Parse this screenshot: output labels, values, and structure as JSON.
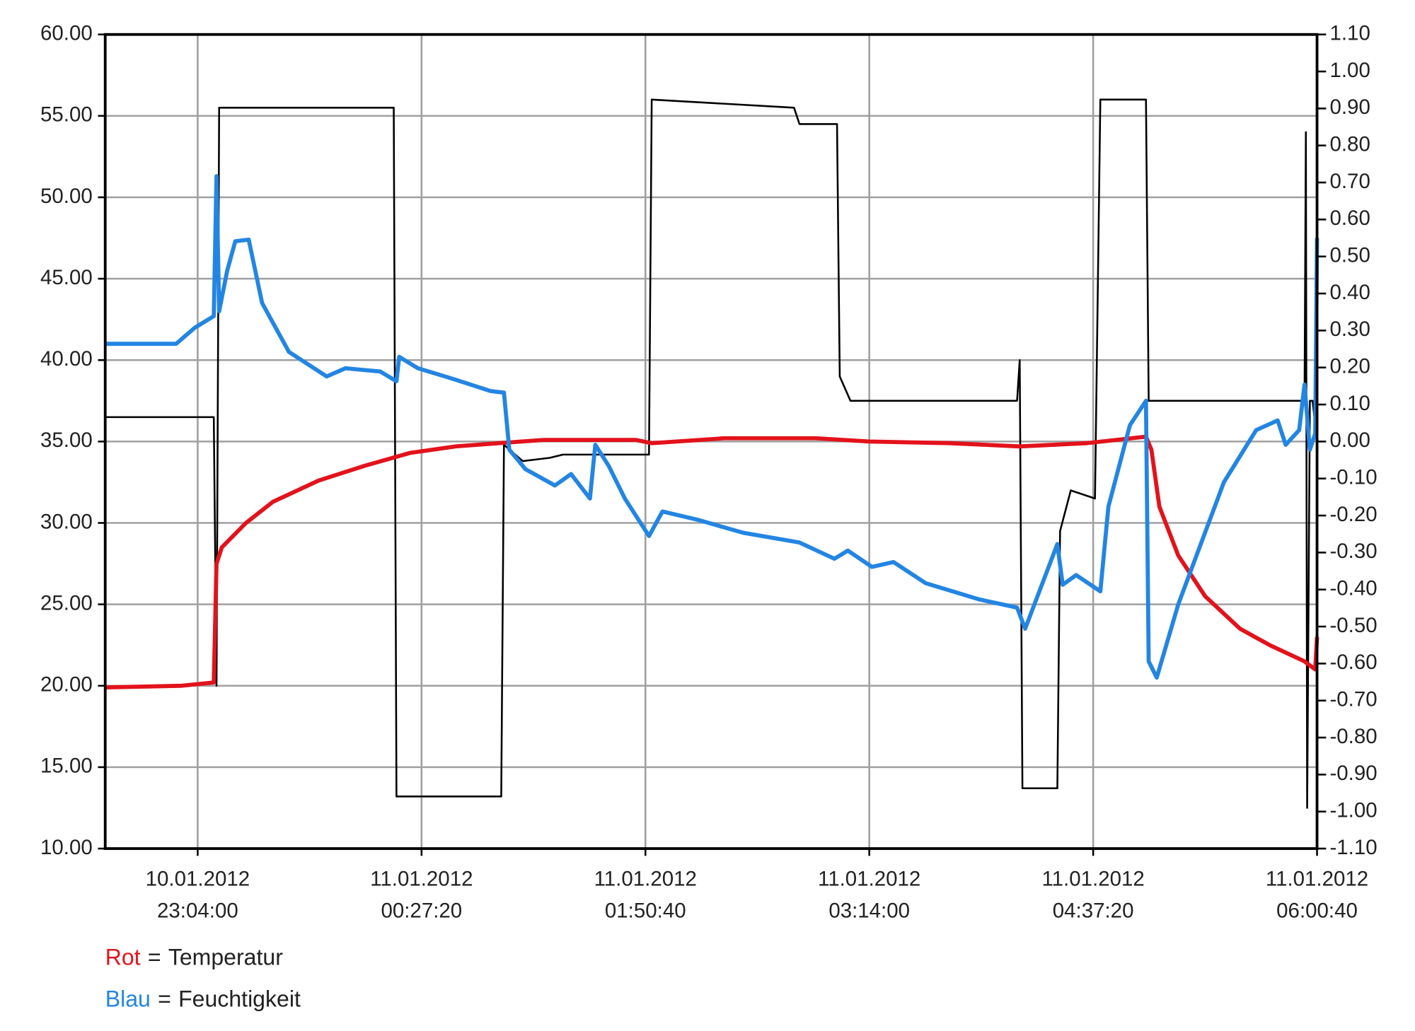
{
  "chart_data": {
    "type": "line",
    "xlim": [
      "2012-01-10T22:29:35",
      "2012-01-11T06:00:40"
    ],
    "xticks": [
      {
        "value": "2012-01-10T23:04:00",
        "label": [
          "10.01.2012",
          "23:04:00"
        ]
      },
      {
        "value": "2012-01-11T00:27:20",
        "label": [
          "11.01.2012",
          "00:27:20"
        ]
      },
      {
        "value": "2012-01-11T01:50:40",
        "label": [
          "11.01.2012",
          "01:50:40"
        ]
      },
      {
        "value": "2012-01-11T03:14:00",
        "label": [
          "11.01.2012",
          "03:14:00"
        ]
      },
      {
        "value": "2012-01-11T04:37:20",
        "label": [
          "11.01.2012",
          "04:37:20"
        ]
      },
      {
        "value": "2012-01-11T06:00:40",
        "label": [
          "11.01.2012",
          "06:00:40"
        ]
      }
    ],
    "ylim": [
      10,
      60
    ],
    "yticks": [
      {
        "value": 10,
        "label": "10.00"
      },
      {
        "value": 15,
        "label": "15.00"
      },
      {
        "value": 20,
        "label": "20.00"
      },
      {
        "value": 25,
        "label": "25.00"
      },
      {
        "value": 30,
        "label": "30.00"
      },
      {
        "value": 35,
        "label": "35.00"
      },
      {
        "value": 40,
        "label": "40.00"
      },
      {
        "value": 45,
        "label": "45.00"
      },
      {
        "value": 50,
        "label": "50.00"
      },
      {
        "value": 55,
        "label": "55.00"
      },
      {
        "value": 60,
        "label": "60.00"
      }
    ],
    "y2lim": [
      -1.1,
      1.1
    ],
    "y2ticks": [
      {
        "value": -1.1,
        "label": "-1.10"
      },
      {
        "value": -1.0,
        "label": "-1.00"
      },
      {
        "value": -0.9,
        "label": "-0.90"
      },
      {
        "value": -0.8,
        "label": "-0.80"
      },
      {
        "value": -0.7,
        "label": "-0.70"
      },
      {
        "value": -0.6,
        "label": "-0.60"
      },
      {
        "value": -0.5,
        "label": "-0.50"
      },
      {
        "value": -0.4,
        "label": "-0.40"
      },
      {
        "value": -0.3,
        "label": "-0.30"
      },
      {
        "value": -0.2,
        "label": "-0.20"
      },
      {
        "value": -0.1,
        "label": "-0.10"
      },
      {
        "value": 0,
        "label": "0.00"
      },
      {
        "value": 0.1,
        "label": "0.10"
      },
      {
        "value": 0.2,
        "label": "0.20"
      },
      {
        "value": 0.3,
        "label": "0.30"
      },
      {
        "value": 0.4,
        "label": "0.40"
      },
      {
        "value": 0.5,
        "label": "0.50"
      },
      {
        "value": 0.6,
        "label": "0.60"
      },
      {
        "value": 0.7,
        "label": "0.70"
      },
      {
        "value": 0.8,
        "label": "0.80"
      },
      {
        "value": 0.9,
        "label": "0.90"
      },
      {
        "value": 1.0,
        "label": "1.00"
      },
      {
        "value": 1.1,
        "label": "1.10"
      }
    ],
    "grid": true,
    "legend_separator": "=",
    "series": [
      {
        "color": "#000000",
        "x": [
          "2012-01-10T22:29:35",
          "2012-01-10T23:10:00",
          "2012-01-10T23:11:00",
          "2012-01-10T23:12:00",
          "2012-01-11T00:17:00",
          "2012-01-11T00:18:00",
          "2012-01-11T00:57:00",
          "2012-01-11T00:58:00",
          "2012-01-11T01:05:00",
          "2012-01-11T01:15:00",
          "2012-01-11T01:20:00",
          "2012-01-11T01:52:00",
          "2012-01-11T01:53:00",
          "2012-01-11T02:46:00",
          "2012-01-11T02:48:00",
          "2012-01-11T03:02:00",
          "2012-01-11T03:03:00",
          "2012-01-11T03:07:00",
          "2012-01-11T04:09:00",
          "2012-01-11T04:10:00",
          "2012-01-11T04:11:00",
          "2012-01-11T04:24:00",
          "2012-01-11T04:25:00",
          "2012-01-11T04:29:00",
          "2012-01-11T04:38:00",
          "2012-01-11T04:40:00",
          "2012-01-11T04:57:00",
          "2012-01-11T04:58:00",
          "2012-01-11T05:56:00",
          "2012-01-11T05:56:30",
          "2012-01-11T05:57:00",
          "2012-01-11T05:58:00",
          "2012-01-11T05:59:00",
          "2012-01-11T06:00:40"
        ],
        "values": [
          36.5,
          36.5,
          20.0,
          55.5,
          55.5,
          13.2,
          13.2,
          34.8,
          33.8,
          34.0,
          34.2,
          34.2,
          56.0,
          55.5,
          54.5,
          54.5,
          39.0,
          37.5,
          37.5,
          40.0,
          13.7,
          13.7,
          29.5,
          32.0,
          31.5,
          56.0,
          56.0,
          37.5,
          37.5,
          54.0,
          12.5,
          37.5,
          37.5,
          35.0
        ]
      },
      {
        "name": "Temperatur",
        "legend_label": "Rot",
        "color": "#e3121b",
        "x": [
          "2012-01-10T22:29:35",
          "2012-01-10T22:58:00",
          "2012-01-10T23:10:00",
          "2012-01-10T23:11:00",
          "2012-01-10T23:13:00",
          "2012-01-10T23:22:00",
          "2012-01-10T23:32:00",
          "2012-01-10T23:49:00",
          "2012-01-11T00:06:00",
          "2012-01-11T00:23:00",
          "2012-01-11T00:40:00",
          "2012-01-11T00:56:00",
          "2012-01-11T01:13:00",
          "2012-01-11T01:47:00",
          "2012-01-11T01:53:00",
          "2012-01-11T02:20:00",
          "2012-01-11T02:54:00",
          "2012-01-11T03:14:00",
          "2012-01-11T03:44:00",
          "2012-01-11T04:10:00",
          "2012-01-11T04:35:00",
          "2012-01-11T04:57:00",
          "2012-01-11T04:59:00",
          "2012-01-11T05:02:00",
          "2012-01-11T05:09:00",
          "2012-01-11T05:19:00",
          "2012-01-11T05:32:00",
          "2012-01-11T05:43:00",
          "2012-01-11T05:56:00",
          "2012-01-11T06:00:00",
          "2012-01-11T06:00:40"
        ],
        "values": [
          19.9,
          20.0,
          20.2,
          27.5,
          28.5,
          30.0,
          31.3,
          32.6,
          33.5,
          34.3,
          34.7,
          34.9,
          35.1,
          35.1,
          34.9,
          35.2,
          35.2,
          35.0,
          34.9,
          34.7,
          34.9,
          35.3,
          34.5,
          31.0,
          28.0,
          25.5,
          23.5,
          22.5,
          21.5,
          21.0,
          23.0
        ]
      },
      {
        "name": "Feuchtigkeit",
        "legend_label": "Blau",
        "color": "#2385e3",
        "x": [
          "2012-01-10T22:29:35",
          "2012-01-10T22:56:00",
          "2012-01-10T23:03:00",
          "2012-01-10T23:10:00",
          "2012-01-10T23:11:00",
          "2012-01-10T23:12:00",
          "2012-01-10T23:15:00",
          "2012-01-10T23:18:00",
          "2012-01-10T23:23:00",
          "2012-01-10T23:28:00",
          "2012-01-10T23:38:00",
          "2012-01-10T23:52:00",
          "2012-01-10T23:59:00",
          "2012-01-11T00:12:00",
          "2012-01-11T00:18:00",
          "2012-01-11T00:19:00",
          "2012-01-11T00:26:00",
          "2012-01-11T00:40:00",
          "2012-01-11T00:53:00",
          "2012-01-11T00:58:00",
          "2012-01-11T01:00:00",
          "2012-01-11T01:06:00",
          "2012-01-11T01:17:00",
          "2012-01-11T01:23:00",
          "2012-01-11T01:30:00",
          "2012-01-11T01:32:00",
          "2012-01-11T01:37:00",
          "2012-01-11T01:43:00",
          "2012-01-11T01:52:00",
          "2012-01-11T01:57:00",
          "2012-01-11T02:10:00",
          "2012-01-11T02:27:00",
          "2012-01-11T02:48:00",
          "2012-01-11T03:01:00",
          "2012-01-11T03:06:00",
          "2012-01-11T03:15:00",
          "2012-01-11T03:23:00",
          "2012-01-11T03:35:00",
          "2012-01-11T03:55:00",
          "2012-01-11T04:09:00",
          "2012-01-11T04:12:00",
          "2012-01-11T04:24:00",
          "2012-01-11T04:26:00",
          "2012-01-11T04:31:00",
          "2012-01-11T04:40:00",
          "2012-01-11T04:43:00",
          "2012-01-11T04:51:00",
          "2012-01-11T04:57:00",
          "2012-01-11T04:58:00",
          "2012-01-11T05:01:00",
          "2012-01-11T05:09:00",
          "2012-01-11T05:26:00",
          "2012-01-11T05:38:00",
          "2012-01-11T05:46:00",
          "2012-01-11T05:49:00",
          "2012-01-11T05:54:00",
          "2012-01-11T05:56:00",
          "2012-01-11T05:58:00",
          "2012-01-11T06:00:00",
          "2012-01-11T06:00:40"
        ],
        "values": [
          41.0,
          41.0,
          42.0,
          42.7,
          51.3,
          43.0,
          45.5,
          47.3,
          47.4,
          43.5,
          40.5,
          39.0,
          39.5,
          39.3,
          38.7,
          40.2,
          39.5,
          38.8,
          38.1,
          38.0,
          34.5,
          33.3,
          32.3,
          33.0,
          31.5,
          34.8,
          33.5,
          31.5,
          29.2,
          30.7,
          30.2,
          29.4,
          28.8,
          27.8,
          28.3,
          27.3,
          27.6,
          26.3,
          25.3,
          24.8,
          23.5,
          28.7,
          26.2,
          26.8,
          25.8,
          31.0,
          36.0,
          37.5,
          21.5,
          20.5,
          25.0,
          32.5,
          35.7,
          36.3,
          34.8,
          35.7,
          38.5,
          34.5,
          35.5,
          47.5
        ]
      }
    ]
  }
}
